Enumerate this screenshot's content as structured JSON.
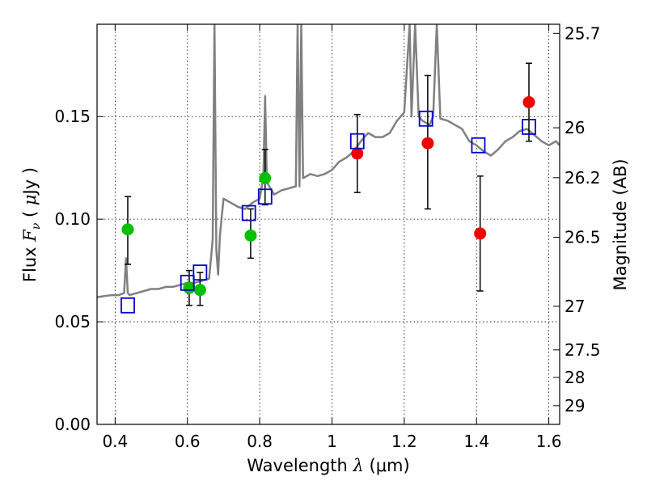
{
  "chart_data": {
    "type": "scatter",
    "title": "",
    "xlabel": "Wavelength  λ (μm)",
    "xlabel_parts": {
      "prefix": "Wavelength  ",
      "symbol": "λ",
      "suffix": " (μm)"
    },
    "ylabel": "Flux  Fν ( μJy )",
    "ylabel_parts": {
      "prefix": "Flux  ",
      "symbol": "F",
      "subscript": "ν",
      "suffix_open": "  ( ",
      "mu": "μ",
      "suffix_close": "Jy )"
    },
    "y2label": "Magnitude (AB)",
    "xlim": [
      0.35,
      1.63
    ],
    "ylim": [
      0.0,
      0.195
    ],
    "grid": true,
    "x_ticks": [
      {
        "value": 0.4,
        "label": "0.4"
      },
      {
        "value": 0.6,
        "label": "0.6"
      },
      {
        "value": 0.8,
        "label": "0.8"
      },
      {
        "value": 1.0,
        "label": "1"
      },
      {
        "value": 1.2,
        "label": "1.2"
      },
      {
        "value": 1.4,
        "label": "1.4"
      },
      {
        "value": 1.6,
        "label": "1.6"
      }
    ],
    "y_ticks": [
      {
        "value": 0.0,
        "label": "0.00"
      },
      {
        "value": 0.05,
        "label": "0.05"
      },
      {
        "value": 0.1,
        "label": "0.10"
      },
      {
        "value": 0.15,
        "label": "0.15"
      }
    ],
    "y2_ticks": [
      {
        "value": 25.7,
        "label": "25.7"
      },
      {
        "value": 26.0,
        "label": "26"
      },
      {
        "value": 26.2,
        "label": "26.2"
      },
      {
        "value": 26.5,
        "label": "26.5"
      },
      {
        "value": 27.0,
        "label": "27"
      },
      {
        "value": 27.5,
        "label": "27.5"
      },
      {
        "value": 28.0,
        "label": "28"
      },
      {
        "value": 29.0,
        "label": "29"
      }
    ],
    "series": [
      {
        "kind": "line",
        "color": "#808080",
        "x": [
          0.35,
          0.37,
          0.39,
          0.41,
          0.425,
          0.43,
          0.435,
          0.44,
          0.46,
          0.48,
          0.5,
          0.52,
          0.54,
          0.56,
          0.58,
          0.6,
          0.62,
          0.64,
          0.66,
          0.67,
          0.675,
          0.68,
          0.685,
          0.69,
          0.7,
          0.72,
          0.74,
          0.76,
          0.78,
          0.8,
          0.81,
          0.815,
          0.82,
          0.84,
          0.86,
          0.88,
          0.9,
          0.905,
          0.91,
          0.915,
          0.92,
          0.94,
          0.96,
          0.98,
          1.0,
          1.02,
          1.04,
          1.06,
          1.08,
          1.1,
          1.12,
          1.14,
          1.16,
          1.18,
          1.2,
          1.215,
          1.22,
          1.23,
          1.24,
          1.25,
          1.27,
          1.28,
          1.29,
          1.3,
          1.32,
          1.34,
          1.36,
          1.38,
          1.4,
          1.42,
          1.44,
          1.46,
          1.48,
          1.5,
          1.52,
          1.54,
          1.56,
          1.58,
          1.6,
          1.62,
          1.63
        ],
        "y": [
          0.062,
          0.0625,
          0.063,
          0.063,
          0.064,
          0.081,
          0.064,
          0.063,
          0.064,
          0.065,
          0.066,
          0.066,
          0.067,
          0.067,
          0.068,
          0.069,
          0.069,
          0.07,
          0.071,
          0.09,
          0.195,
          0.085,
          0.073,
          0.092,
          0.11,
          0.108,
          0.106,
          0.105,
          0.108,
          0.11,
          0.12,
          0.16,
          0.118,
          0.112,
          0.114,
          0.115,
          0.116,
          0.195,
          0.116,
          0.195,
          0.12,
          0.122,
          0.121,
          0.122,
          0.124,
          0.128,
          0.13,
          0.133,
          0.138,
          0.142,
          0.14,
          0.14,
          0.142,
          0.148,
          0.152,
          0.195,
          0.15,
          0.195,
          0.15,
          0.148,
          0.146,
          0.15,
          0.195,
          0.149,
          0.148,
          0.146,
          0.144,
          0.138,
          0.136,
          0.133,
          0.131,
          0.134,
          0.138,
          0.14,
          0.143,
          0.144,
          0.141,
          0.138,
          0.136,
          0.138,
          0.136
        ]
      },
      {
        "kind": "points",
        "marker": "circle",
        "color": "#00c000",
        "x": [
          0.435,
          0.605,
          0.635,
          0.775,
          0.815
        ],
        "y": [
          0.095,
          0.0665,
          0.0655,
          0.092,
          0.12
        ],
        "yerr_low": [
          0.078,
          0.058,
          0.058,
          0.081,
          0.107
        ],
        "yerr_high": [
          0.111,
          0.075,
          0.074,
          0.105,
          0.134
        ]
      },
      {
        "kind": "points",
        "marker": "circle",
        "color": "#ee0000",
        "x": [
          1.07,
          1.265,
          1.41,
          1.545
        ],
        "y": [
          0.132,
          0.137,
          0.093,
          0.157
        ],
        "yerr_low": [
          0.113,
          0.105,
          0.065,
          0.138
        ],
        "yerr_high": [
          0.151,
          0.17,
          0.121,
          0.176
        ]
      },
      {
        "kind": "points",
        "marker": "square-open",
        "color": "#0000cc",
        "x": [
          0.435,
          0.6,
          0.635,
          0.77,
          0.815,
          1.07,
          1.26,
          1.405,
          1.545
        ],
        "y": [
          0.058,
          0.069,
          0.074,
          0.103,
          0.111,
          0.138,
          0.149,
          0.136,
          0.145
        ]
      }
    ]
  }
}
